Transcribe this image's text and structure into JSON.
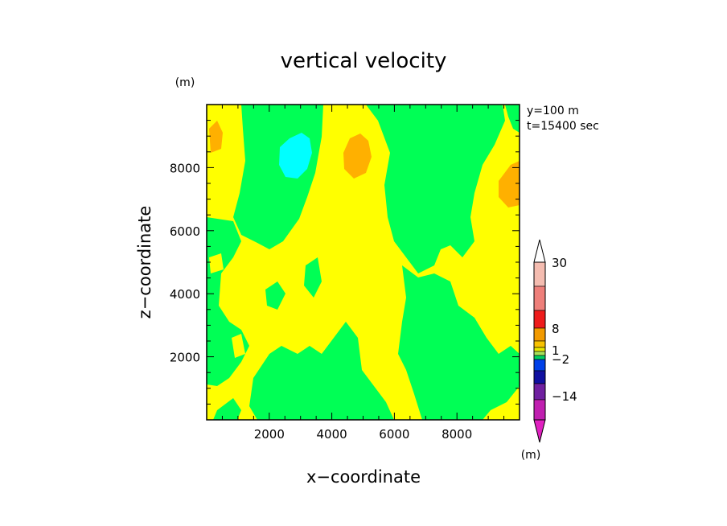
{
  "chart_data": {
    "type": "contour",
    "title": "vertical velocity",
    "xlabel": "x−coordinate",
    "ylabel": "z−coordinate",
    "y_unit": "(m)",
    "x_unit": "(m)",
    "annotations": [
      "y=100  m",
      "t=15400  sec"
    ],
    "xlim": [
      0,
      10000
    ],
    "ylim": [
      0,
      10000
    ],
    "x_ticks": [
      "2000",
      "4000",
      "6000",
      "8000"
    ],
    "y_ticks": [
      "2000",
      "4000",
      "6000",
      "8000"
    ],
    "x_tick_values": [
      2000,
      4000,
      6000,
      8000
    ],
    "y_tick_values": [
      2000,
      4000,
      6000,
      8000
    ],
    "colorbar": {
      "levels": [
        -14,
        -2,
        1,
        8,
        30
      ],
      "tick_labels": [
        "30",
        "8",
        "1",
        "−2",
        "−14"
      ],
      "colors_top_to_bottom": [
        "#f4bcb0",
        "#ee7f7a",
        "#ee1c1c",
        "#f29a00",
        "#f8c200",
        "#e8e800",
        "#a8e05a",
        "#00d060",
        "#0040e8",
        "#1010a0",
        "#7020a0",
        "#c020b0",
        "#e020c0"
      ]
    },
    "field_colors": {
      "dominant_low": "#00ff55",
      "dominant_high": "#ffff00",
      "positive_peak": "#ffb000",
      "negative_peak": "#00ffff"
    }
  }
}
